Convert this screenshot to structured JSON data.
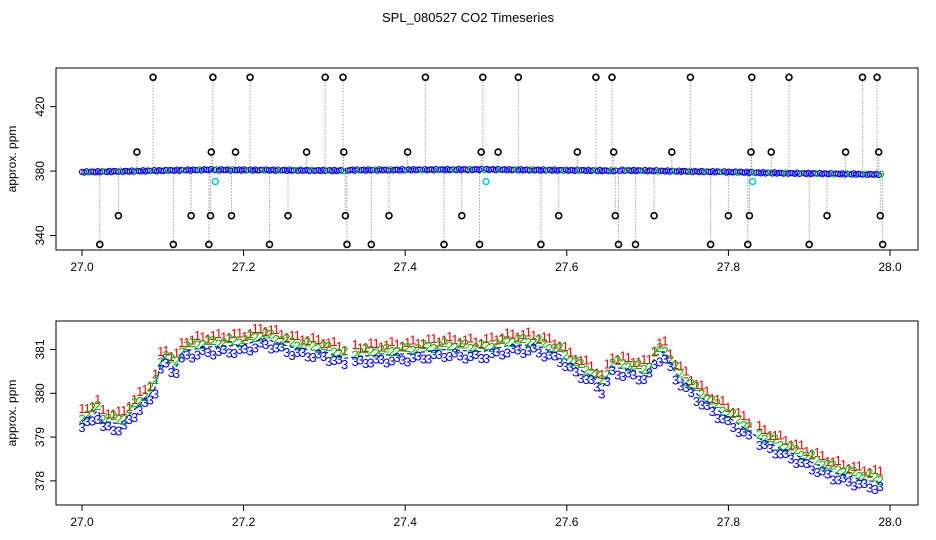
{
  "figure_title": "SPL_080527  CO2 Timeseries",
  "colors": {
    "raw_points": "#000000",
    "drop_lines": "#a0a0a0",
    "blue_points": "#0000ff",
    "cyan_points": "#00c8d2",
    "series_1": "#ff0000",
    "series_2": "#00bb00",
    "series_3": "#0000ff"
  },
  "chart_data": [
    {
      "type": "scatter",
      "title": "SPL_080527  CO2 Timeseries",
      "xlabel": "",
      "ylabel": "approx. ppm",
      "xlim": [
        27.0,
        28.0
      ],
      "ylim": [
        331,
        444
      ],
      "xticks": [
        27.0,
        27.2,
        27.4,
        27.6,
        27.8,
        28.0
      ],
      "xtick_labels": [
        "27.0",
        "27.2",
        "27.4",
        "27.6",
        "27.8",
        "28.0"
      ],
      "yticks": [
        340,
        380,
        420
      ],
      "ytick_labels": [
        "340",
        "380",
        "420"
      ],
      "baseline_segments": [
        {
          "x0": 27.0,
          "x1": 27.161,
          "y0": 379.4,
          "y1": 380.9
        },
        {
          "x0": 27.164,
          "x1": 27.326,
          "y0": 380.8,
          "y1": 380.3
        },
        {
          "x0": 27.329,
          "x1": 27.495,
          "y0": 380.6,
          "y1": 381.0
        },
        {
          "x0": 27.498,
          "x1": 27.663,
          "y0": 381.0,
          "y1": 380.2
        },
        {
          "x0": 27.666,
          "x1": 27.829,
          "y0": 380.5,
          "y1": 379.2
        },
        {
          "x0": 27.832,
          "x1": 27.99,
          "y0": 379.0,
          "y1": 377.9
        }
      ],
      "cyan_points": [
        {
          "x": 27.165,
          "y": 373.5
        },
        {
          "x": 27.5,
          "y": 373.5
        },
        {
          "x": 27.83,
          "y": 373.5
        }
      ],
      "outliers": [
        {
          "x": 27.022,
          "y": 334.5
        },
        {
          "x": 27.045,
          "y": 352.3
        },
        {
          "x": 27.068,
          "y": 391.8
        },
        {
          "x": 27.088,
          "y": 438.2
        },
        {
          "x": 27.113,
          "y": 334.5
        },
        {
          "x": 27.135,
          "y": 352.3
        },
        {
          "x": 27.157,
          "y": 334.5
        },
        {
          "x": 27.159,
          "y": 352.3
        },
        {
          "x": 27.16,
          "y": 391.8
        },
        {
          "x": 27.162,
          "y": 438.2
        },
        {
          "x": 27.185,
          "y": 352.3
        },
        {
          "x": 27.208,
          "y": 438.2
        },
        {
          "x": 27.19,
          "y": 391.8
        },
        {
          "x": 27.232,
          "y": 334.5
        },
        {
          "x": 27.255,
          "y": 352.3
        },
        {
          "x": 27.278,
          "y": 391.8
        },
        {
          "x": 27.301,
          "y": 438.2
        },
        {
          "x": 27.323,
          "y": 438.2
        },
        {
          "x": 27.324,
          "y": 391.8
        },
        {
          "x": 27.326,
          "y": 352.3
        },
        {
          "x": 27.328,
          "y": 334.5
        },
        {
          "x": 27.358,
          "y": 334.5
        },
        {
          "x": 27.38,
          "y": 352.3
        },
        {
          "x": 27.403,
          "y": 391.8
        },
        {
          "x": 27.425,
          "y": 438.2
        },
        {
          "x": 27.448,
          "y": 334.5
        },
        {
          "x": 27.47,
          "y": 352.3
        },
        {
          "x": 27.492,
          "y": 334.5
        },
        {
          "x": 27.494,
          "y": 391.8
        },
        {
          "x": 27.496,
          "y": 438.2
        },
        {
          "x": 27.515,
          "y": 391.8
        },
        {
          "x": 27.54,
          "y": 438.2
        },
        {
          "x": 27.568,
          "y": 334.5
        },
        {
          "x": 27.59,
          "y": 352.3
        },
        {
          "x": 27.613,
          "y": 391.8
        },
        {
          "x": 27.636,
          "y": 438.2
        },
        {
          "x": 27.656,
          "y": 438.2
        },
        {
          "x": 27.658,
          "y": 391.8
        },
        {
          "x": 27.66,
          "y": 352.3
        },
        {
          "x": 27.664,
          "y": 334.5
        },
        {
          "x": 27.685,
          "y": 334.5
        },
        {
          "x": 27.708,
          "y": 352.3
        },
        {
          "x": 27.73,
          "y": 391.8
        },
        {
          "x": 27.753,
          "y": 438.2
        },
        {
          "x": 27.778,
          "y": 334.5
        },
        {
          "x": 27.8,
          "y": 352.3
        },
        {
          "x": 27.824,
          "y": 334.5
        },
        {
          "x": 27.826,
          "y": 352.3
        },
        {
          "x": 27.828,
          "y": 391.8
        },
        {
          "x": 27.829,
          "y": 438.2
        },
        {
          "x": 27.853,
          "y": 391.8
        },
        {
          "x": 27.875,
          "y": 438.2
        },
        {
          "x": 27.9,
          "y": 334.5
        },
        {
          "x": 27.922,
          "y": 352.3
        },
        {
          "x": 27.945,
          "y": 391.8
        },
        {
          "x": 27.966,
          "y": 438.2
        },
        {
          "x": 27.984,
          "y": 438.2
        },
        {
          "x": 27.986,
          "y": 391.8
        },
        {
          "x": 27.988,
          "y": 352.3
        },
        {
          "x": 27.991,
          "y": 334.5
        }
      ]
    },
    {
      "type": "scatter",
      "title": "",
      "xlabel": "",
      "ylabel": "approx. ppm",
      "xlim": [
        27.0,
        28.0
      ],
      "ylim": [
        377.45,
        381.65
      ],
      "xticks": [
        27.0,
        27.2,
        27.4,
        27.6,
        27.8,
        28.0
      ],
      "xtick_labels": [
        "27.0",
        "27.2",
        "27.4",
        "27.6",
        "27.8",
        "28.0"
      ],
      "yticks": [
        378,
        379,
        380,
        381
      ],
      "ytick_labels": [
        "378",
        "379",
        "380",
        "381"
      ],
      "series": [
        {
          "name": "1",
          "offset": 0.25
        },
        {
          "name": "2",
          "offset": 0.12
        },
        {
          "name": "3",
          "offset": -0.12
        }
      ],
      "trend": [
        {
          "x": 27.0,
          "y": 379.35
        },
        {
          "x": 27.02,
          "y": 379.6
        },
        {
          "x": 27.025,
          "y": 379.35
        },
        {
          "x": 27.05,
          "y": 379.3
        },
        {
          "x": 27.06,
          "y": 379.55
        },
        {
          "x": 27.075,
          "y": 379.8
        },
        {
          "x": 27.09,
          "y": 380.1
        },
        {
          "x": 27.1,
          "y": 380.85
        },
        {
          "x": 27.115,
          "y": 380.55
        },
        {
          "x": 27.125,
          "y": 380.95
        },
        {
          "x": 27.15,
          "y": 381.05
        },
        {
          "x": 27.2,
          "y": 381.1
        },
        {
          "x": 27.225,
          "y": 381.25
        },
        {
          "x": 27.26,
          "y": 381.05
        },
        {
          "x": 27.3,
          "y": 380.95
        },
        {
          "x": 27.325,
          "y": 380.8
        },
        {
          "x": 27.35,
          "y": 380.85
        },
        {
          "x": 27.4,
          "y": 380.9
        },
        {
          "x": 27.45,
          "y": 381.0
        },
        {
          "x": 27.495,
          "y": 380.95
        },
        {
          "x": 27.53,
          "y": 381.1
        },
        {
          "x": 27.56,
          "y": 381.1
        },
        {
          "x": 27.59,
          "y": 380.9
        },
        {
          "x": 27.61,
          "y": 380.6
        },
        {
          "x": 27.63,
          "y": 380.4
        },
        {
          "x": 27.645,
          "y": 380.15
        },
        {
          "x": 27.655,
          "y": 380.6
        },
        {
          "x": 27.675,
          "y": 380.55
        },
        {
          "x": 27.7,
          "y": 380.45
        },
        {
          "x": 27.71,
          "y": 380.85
        },
        {
          "x": 27.72,
          "y": 380.95
        },
        {
          "x": 27.735,
          "y": 380.45
        },
        {
          "x": 27.76,
          "y": 380.0
        },
        {
          "x": 27.78,
          "y": 379.7
        },
        {
          "x": 27.8,
          "y": 379.45
        },
        {
          "x": 27.82,
          "y": 379.2
        },
        {
          "x": 27.84,
          "y": 378.95
        },
        {
          "x": 27.87,
          "y": 378.7
        },
        {
          "x": 27.9,
          "y": 378.45
        },
        {
          "x": 27.93,
          "y": 378.2
        },
        {
          "x": 27.96,
          "y": 378.05
        },
        {
          "x": 27.99,
          "y": 377.95
        }
      ]
    }
  ]
}
